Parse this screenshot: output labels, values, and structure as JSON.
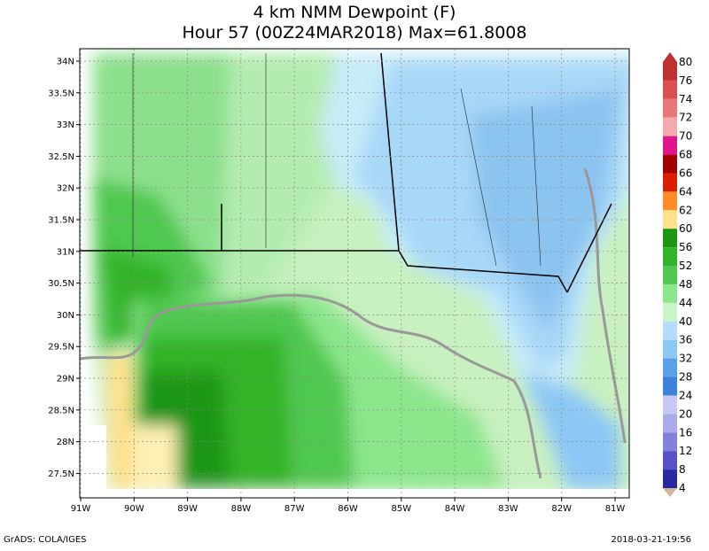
{
  "header": {
    "title": "4 km NMM Dewpoint (F)",
    "subtitle": "Hour 57 (00Z24MAR2018) Max=61.8008"
  },
  "map": {
    "lat_labels": [
      "34N",
      "33.5N",
      "33N",
      "32.5N",
      "32N",
      "31.5N",
      "31N",
      "30.5N",
      "30N",
      "29.5N",
      "29N",
      "28.5N",
      "28N",
      "27.5N"
    ],
    "lon_labels": [
      "91W",
      "90W",
      "89W",
      "88W",
      "87W",
      "86W",
      "85W",
      "84W",
      "83W",
      "82W",
      "81W"
    ]
  },
  "colorbar": {
    "labels": [
      "80",
      "76",
      "74",
      "72",
      "70",
      "68",
      "66",
      "64",
      "62",
      "60",
      "56",
      "52",
      "48",
      "44",
      "40",
      "36",
      "32",
      "28",
      "24",
      "20",
      "16",
      "12",
      "8",
      "4"
    ],
    "colors": [
      "#c03030",
      "#d85050",
      "#e87878",
      "#f4aaaa",
      "#e0148c",
      "#a00000",
      "#dc1e00",
      "#ff8c28",
      "#ffe08c",
      "#1e9614",
      "#32b428",
      "#50c850",
      "#8ce68c",
      "#c8f5c8",
      "#b4dcff",
      "#8cc8f5",
      "#5aa0eb",
      "#3c82dc",
      "#c8c8f5",
      "#aaaaeb",
      "#8282dc",
      "#5a50c8",
      "#2828a0"
    ]
  },
  "footer": {
    "left": "GrADS: COLA/IGES",
    "right": "2018-03-21-19:56"
  }
}
